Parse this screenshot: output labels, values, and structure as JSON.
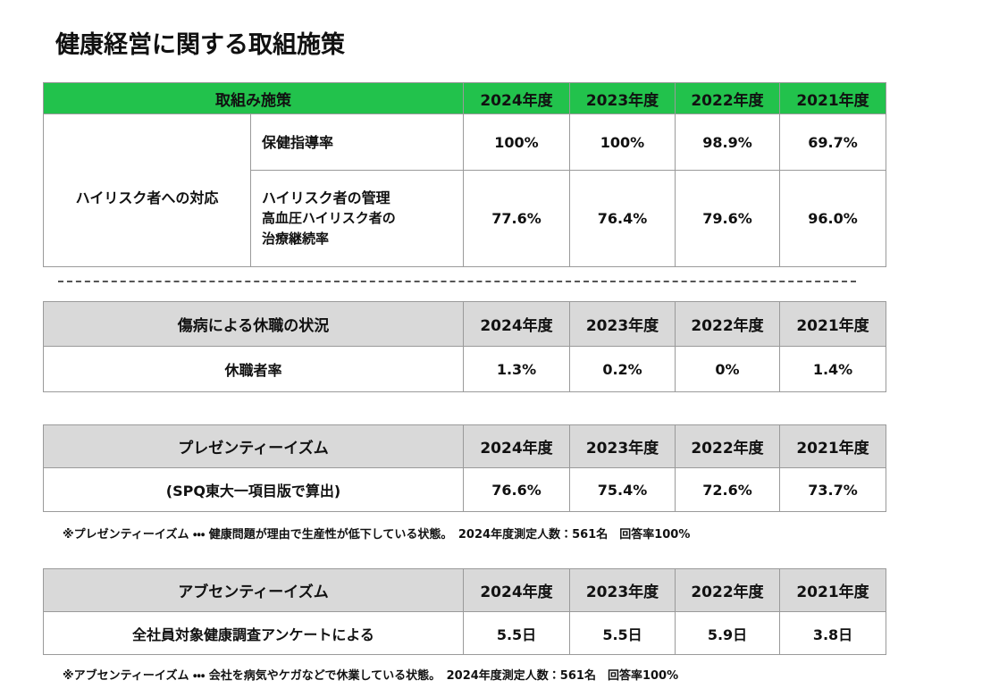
{
  "title": "健康経営に関する取組施策",
  "table1": {
    "header": [
      "取組み施策",
      "2024年度",
      "2023年度",
      "2022年度",
      "2021年度"
    ],
    "group": "ハイリスク者への対応",
    "rows": [
      {
        "item": [
          "保健指導率"
        ],
        "values": [
          "100%",
          "100%",
          "98.9%",
          "69.7%"
        ]
      },
      {
        "item": [
          "ハイリスク者の管理",
          "高血圧ハイリスク者の",
          "治療継続率"
        ],
        "values": [
          "77.6%",
          "76.4%",
          "79.6%",
          "96.0%"
        ]
      }
    ]
  },
  "table2": {
    "header": [
      "傷病による休職の状況",
      "2024年度",
      "2023年度",
      "2022年度",
      "2021年度"
    ],
    "rows": [
      [
        "休職者率",
        "1.3%",
        "0.2%",
        "0%",
        "1.4%"
      ]
    ]
  },
  "table3": {
    "header": [
      "プレゼンティーイズム",
      "2024年度",
      "2023年度",
      "2022年度",
      "2021年度"
    ],
    "rows": [
      [
        "(SPQ東大一項目版で算出)",
        "76.6%",
        "75.4%",
        "72.6%",
        "73.7%"
      ]
    ],
    "note": "※プレゼンティーイズム ・・・ 健康問題が理由で生産性が低下している状態。　2024年度測定人数：561名　回答率100%"
  },
  "table4": {
    "header": [
      "アブセンティーイズム",
      "2024年度",
      "2023年度",
      "2022年度",
      "2021年度"
    ],
    "rows": [
      [
        "全社員対象健康調査アンケートによる",
        "5.5日",
        "5.5日",
        "5.9日",
        "3.8日"
      ]
    ],
    "note": "※アブセンティーイズム ・・・ 会社を病気やケガなどで休業している状態。　2024年度測定人数：561名　回答率100%"
  }
}
